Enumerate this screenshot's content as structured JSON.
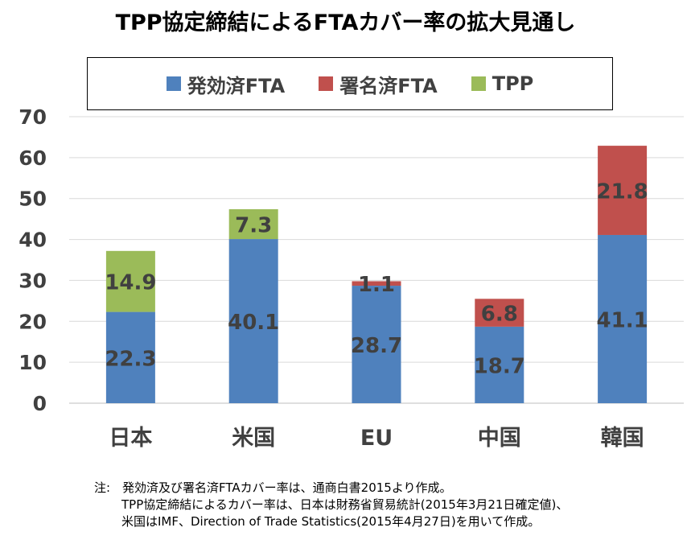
{
  "title": "TPP協定締結によるFTAカバー率の拡大見通し",
  "colors": {
    "enforced": "#4F81BD",
    "signed": "#C0504D",
    "tpp": "#9BBB59",
    "grid": "#D9D9D9",
    "label": "#404040"
  },
  "chart_data": {
    "type": "bar",
    "stacked": true,
    "categories": [
      "日本",
      "米国",
      "EU",
      "中国",
      "韓国"
    ],
    "series": [
      {
        "name": "発効済FTA",
        "color": "#4F81BD",
        "values": [
          22.3,
          40.1,
          28.7,
          18.7,
          41.1
        ]
      },
      {
        "name": "署名済FTA",
        "color": "#C0504D",
        "values": [
          0,
          0,
          1.1,
          6.8,
          21.8
        ]
      },
      {
        "name": "TPP",
        "color": "#9BBB59",
        "values": [
          14.9,
          7.3,
          0,
          0,
          0
        ]
      }
    ],
    "ylim": [
      0,
      70
    ],
    "yticks": [
      "0",
      "10",
      "20",
      "30",
      "40",
      "50",
      "60",
      "70"
    ],
    "grid": true,
    "legend_position": "top"
  },
  "notes": [
    "注:　発効済及び署名済FTAカバー率は、通商白書2015より作成。",
    "TPP協定締結によるカバー率は、日本は財務省貿易統計(2015年3月21日確定値)、",
    "米国はIMF、Direction of Trade Statistics(2015年4月27日)を用いて作成。"
  ]
}
